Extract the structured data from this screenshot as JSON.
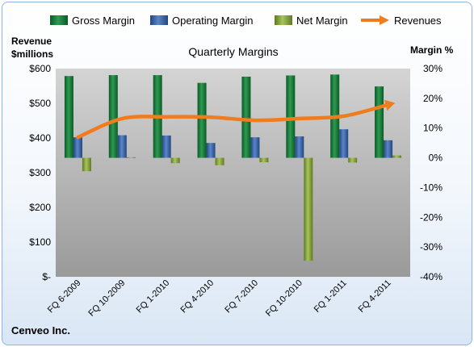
{
  "chart_data": {
    "type": "bar",
    "title": "Quarterly Margins",
    "company": "Cenveo Inc.",
    "categories": [
      "FQ 6-2009",
      "FQ 10-2009",
      "FQ 1-2010",
      "FQ 4-2010",
      "FQ 7-2010",
      "FQ 10-2010",
      "FQ 1-2011",
      "FQ 4-2011"
    ],
    "series": [
      {
        "name": "Gross Margin",
        "axis": "right",
        "color": "#1f7f3f",
        "values": [
          27.5,
          27.8,
          27.8,
          25.2,
          27.3,
          27.7,
          28.0,
          24.0
        ]
      },
      {
        "name": "Operating Margin",
        "axis": "right",
        "color": "#3f6aad",
        "values": [
          6.9,
          7.6,
          7.5,
          5.0,
          6.9,
          7.2,
          9.6,
          5.9
        ]
      },
      {
        "name": "Net Margin",
        "axis": "right",
        "color": "#8fae46",
        "values": [
          -4.5,
          0.2,
          -1.8,
          -2.5,
          -1.5,
          -34.6,
          -1.6,
          0.8
        ]
      },
      {
        "name": "Revenues",
        "axis": "left",
        "type": "line",
        "color": "#f07c1e",
        "values": [
          402,
          456,
          461,
          460,
          451,
          456,
          463,
          496
        ]
      }
    ],
    "ylabel_left": "Revenue $millions",
    "ylabel_right": "Margin %",
    "ylim_left": [
      0,
      600
    ],
    "ylim_right": [
      -40,
      30
    ],
    "yticks_left": [
      "$-",
      "$100",
      "$200",
      "$300",
      "$400",
      "$500",
      "$600"
    ],
    "yticks_right": [
      "-40%",
      "-30%",
      "-20%",
      "-10%",
      "0%",
      "10%",
      "20%",
      "30%"
    ],
    "legend_position": "top",
    "grid": false
  }
}
